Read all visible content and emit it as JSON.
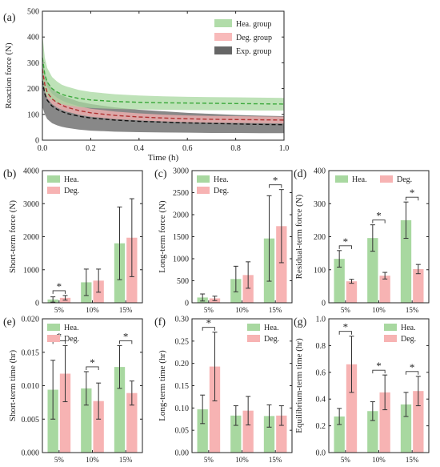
{
  "colors": {
    "hea": "#a8d8a0",
    "hea_dark": "#3aa83a",
    "deg": "#f7b3b3",
    "deg_dark": "#b03030",
    "exp": "#555555",
    "exp_dark": "#111111"
  },
  "chart_data": [
    {
      "panel": "(a)",
      "type": "area",
      "xlabel": "Time (h)",
      "ylabel": "Reaction force (N)",
      "xlim": [
        0,
        1.0
      ],
      "ylim": [
        0,
        500
      ],
      "xticks": [
        "0.0",
        "0.2",
        "0.4",
        "0.6",
        "0.8",
        "1.0"
      ],
      "yticks": [
        "0",
        "100",
        "200",
        "300",
        "400",
        "500"
      ],
      "legend": [
        "Hea. group",
        "Deg. group",
        "Exp. group"
      ],
      "legend_position": "top-right",
      "x": [
        0,
        0.01,
        0.02,
        0.04,
        0.06,
        0.08,
        0.1,
        0.15,
        0.2,
        0.3,
        0.4,
        0.5,
        0.6,
        0.7,
        0.8,
        0.9,
        1.0
      ],
      "series": [
        {
          "name": "Hea. group",
          "mean": [
            320,
            255,
            225,
            200,
            187,
            178,
            172,
            162,
            156,
            150,
            147,
            145,
            144,
            143,
            142,
            141,
            140
          ],
          "upper": [
            410,
            320,
            280,
            245,
            228,
            215,
            208,
            195,
            187,
            178,
            173,
            170,
            168,
            167,
            166,
            165,
            164
          ],
          "lower": [
            230,
            190,
            170,
            155,
            146,
            140,
            136,
            129,
            125,
            121,
            119,
            118,
            117,
            116,
            116,
            115,
            115
          ]
        },
        {
          "name": "Deg. group",
          "mean": [
            275,
            215,
            185,
            160,
            146,
            136,
            128,
            115,
            106,
            96,
            90,
            86,
            83,
            81,
            80,
            79,
            78
          ],
          "upper": [
            300,
            240,
            208,
            180,
            165,
            154,
            146,
            132,
            122,
            111,
            104,
            99,
            96,
            94,
            93,
            92,
            91
          ],
          "lower": [
            250,
            190,
            162,
            140,
            127,
            118,
            111,
            99,
            91,
            82,
            77,
            73,
            70,
            68,
            67,
            66,
            65
          ]
        },
        {
          "name": "Exp. group",
          "mean": [
            230,
            180,
            155,
            132,
            120,
            111,
            104,
            93,
            86,
            78,
            73,
            70,
            67,
            65,
            63,
            61,
            60
          ],
          "upper": [
            330,
            260,
            230,
            200,
            185,
            174,
            166,
            150,
            140,
            127,
            118,
            112,
            106,
            102,
            98,
            95,
            93
          ],
          "lower": [
            130,
            100,
            82,
            66,
            58,
            52,
            48,
            41,
            37,
            33,
            31,
            30,
            29,
            28,
            28,
            27,
            27
          ]
        }
      ]
    },
    {
      "panel": "(b)",
      "type": "bar",
      "ylabel": "Short-term force (N)",
      "categories": [
        "5%",
        "10%",
        "15%"
      ],
      "ylim": [
        0,
        4000
      ],
      "yticks": [
        "0",
        "1000",
        "2000",
        "3000",
        "4000"
      ],
      "legend": [
        "Hea.",
        "Deg."
      ],
      "legend_position": "top-left",
      "series": [
        {
          "name": "Hea.",
          "values": [
            100,
            620,
            1800
          ],
          "errors": [
            80,
            400,
            1100
          ]
        },
        {
          "name": "Deg.",
          "values": [
            150,
            670,
            1970
          ],
          "errors": [
            70,
            350,
            1180
          ]
        }
      ],
      "significance": [
        0
      ]
    },
    {
      "panel": "(c)",
      "type": "bar",
      "ylabel": "Long-term force (N)",
      "categories": [
        "5%",
        "10%",
        "15%"
      ],
      "ylim": [
        0,
        3000
      ],
      "yticks": [
        "0",
        "500",
        "1000",
        "1500",
        "2000",
        "2500",
        "3000"
      ],
      "legend": [
        "Hea.",
        "Deg."
      ],
      "legend_position": "top-left",
      "series": [
        {
          "name": "Hea.",
          "values": [
            120,
            540,
            1460
          ],
          "errors": [
            80,
            290,
            970
          ]
        },
        {
          "name": "Deg.",
          "values": [
            100,
            630,
            1740
          ],
          "errors": [
            50,
            300,
            830
          ]
        }
      ],
      "significance": [
        2
      ]
    },
    {
      "panel": "(d)",
      "type": "bar",
      "ylabel": "Residual-term force (N)",
      "categories": [
        "5%",
        "10%",
        "15%"
      ],
      "ylim": [
        0,
        400
      ],
      "yticks": [
        "0",
        "100",
        "200",
        "300",
        "400"
      ],
      "legend": [
        "Hea.",
        "Deg."
      ],
      "legend_position": "top",
      "series": [
        {
          "name": "Hea.",
          "values": [
            133,
            196,
            250
          ],
          "errors": [
            25,
            40,
            55
          ]
        },
        {
          "name": "Deg.",
          "values": [
            65,
            82,
            102
          ],
          "errors": [
            6,
            10,
            14
          ]
        }
      ],
      "significance": [
        0,
        1,
        2
      ]
    },
    {
      "panel": "(e)",
      "type": "bar",
      "ylabel": "Short-term time (hr)",
      "categories": [
        "5%",
        "10%",
        "15%"
      ],
      "ylim": [
        0,
        0.02
      ],
      "yticks": [
        "0.000",
        "0.005",
        "0.010",
        "0.015",
        "0.020"
      ],
      "legend": [
        "Hea.",
        "Deg."
      ],
      "legend_position": "top-left",
      "series": [
        {
          "name": "Hea.",
          "values": [
            0.0094,
            0.0096,
            0.0128
          ],
          "errors": [
            0.0044,
            0.0025,
            0.0032
          ]
        },
        {
          "name": "Deg.",
          "values": [
            0.0118,
            0.0077,
            0.0089
          ],
          "errors": [
            0.0042,
            0.0027,
            0.0018
          ]
        }
      ],
      "significance": [
        0,
        1,
        2
      ]
    },
    {
      "panel": "(f)",
      "type": "bar",
      "ylabel": "Long-term time (hr)",
      "categories": [
        "5%",
        "10%",
        "15%"
      ],
      "ylim": [
        0,
        0.3
      ],
      "yticks": [
        "0.00",
        "0.05",
        "0.10",
        "0.15",
        "0.20",
        "0.25",
        "0.30"
      ],
      "legend": [
        "Hea.",
        "Deg."
      ],
      "legend_position": "top-right",
      "series": [
        {
          "name": "Hea.",
          "values": [
            0.097,
            0.083,
            0.082
          ],
          "errors": [
            0.032,
            0.022,
            0.025
          ]
        },
        {
          "name": "Deg.",
          "values": [
            0.193,
            0.094,
            0.083
          ],
          "errors": [
            0.077,
            0.032,
            0.022
          ]
        }
      ],
      "significance": [
        0
      ]
    },
    {
      "panel": "(g)",
      "type": "bar",
      "ylabel": "Equilibrium-term time (hr)",
      "categories": [
        "5%",
        "10%",
        "15%"
      ],
      "ylim": [
        0,
        1.0
      ],
      "yticks": [
        "0.0",
        "0.2",
        "0.4",
        "0.6",
        "0.8",
        "1.0"
      ],
      "legend": [
        "Hea.",
        "Deg."
      ],
      "legend_position": "top-right",
      "series": [
        {
          "name": "Hea.",
          "values": [
            0.27,
            0.31,
            0.36
          ],
          "errors": [
            0.06,
            0.07,
            0.09
          ]
        },
        {
          "name": "Deg.",
          "values": [
            0.66,
            0.45,
            0.46
          ],
          "errors": [
            0.21,
            0.13,
            0.11
          ]
        }
      ],
      "significance": [
        0,
        1,
        2
      ]
    }
  ]
}
